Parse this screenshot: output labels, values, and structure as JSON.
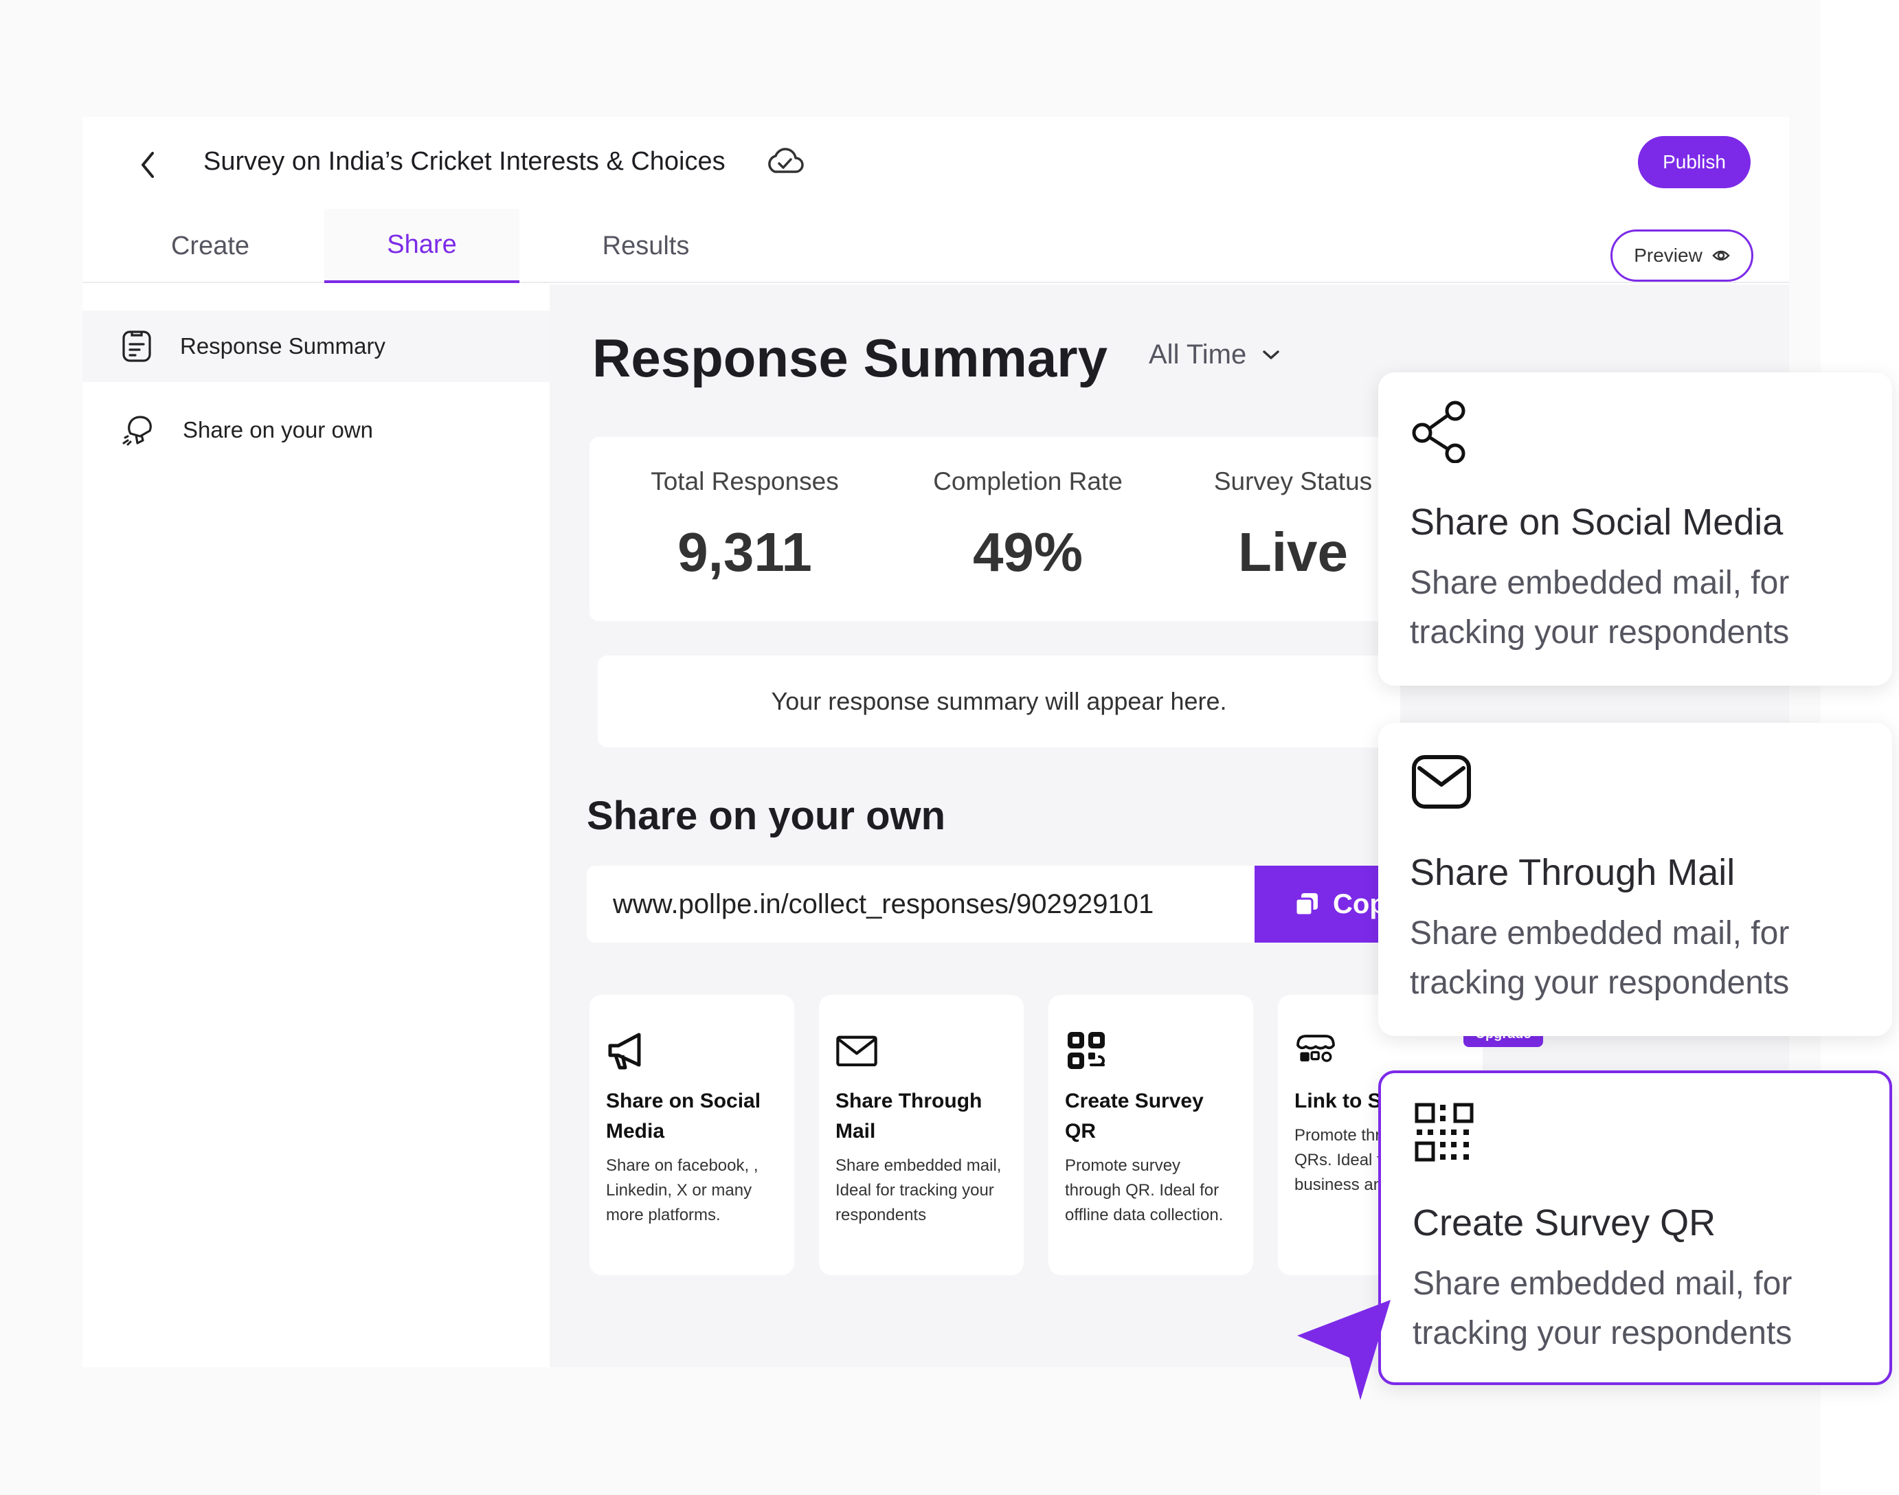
{
  "header": {
    "survey_title": "Survey on India’s Cricket Interests & Choices",
    "publish_label": "Publish",
    "preview_label": "Preview"
  },
  "tabs": [
    {
      "label": "Create",
      "active": false
    },
    {
      "label": "Share",
      "active": true
    },
    {
      "label": "Results",
      "active": false
    }
  ],
  "sidebar": {
    "items": [
      {
        "label": "Response Summary",
        "icon": "clipboard-icon",
        "active": true
      },
      {
        "label": "Share on your own",
        "icon": "megaphone-outline-icon",
        "active": false
      }
    ]
  },
  "main": {
    "heading": "Response Summary",
    "time_filter": "All Time",
    "stats": [
      {
        "label": "Total Responses",
        "value": "9,311"
      },
      {
        "label": "Completion Rate",
        "value": "49%"
      },
      {
        "label": "Survey Status",
        "value": "Live"
      }
    ],
    "summary_note": "Your response summary will appear here.",
    "share_heading": "Share on your own",
    "share_url": "www.pollpe.in/collect_responses/902929101",
    "copy_label": "Copy",
    "share_options": [
      {
        "title": "Share on Social Media",
        "desc": "Share on facebook, , Linkedin, X or many more platforms.",
        "icon": "megaphone-icon"
      },
      {
        "title": "Share Through Mail",
        "desc": "Share embedded mail, Ideal for tracking your respondents",
        "icon": "mail-icon"
      },
      {
        "title": "Create Survey QR",
        "desc": "Promote survey through QR. Ideal for offline data collection.",
        "icon": "qr-code-icon"
      },
      {
        "title": "Link to Store",
        "desc": "Promote through Store QRs. Ideal for offline business and shops.",
        "icon": "store-icon"
      }
    ],
    "upgrade_label": "Upgrade"
  },
  "floating_cards": [
    {
      "title": "Share on Social Media",
      "desc": "Share embedded mail, for tracking your respondents",
      "icon": "share-icon",
      "selected": false
    },
    {
      "title": "Share Through Mail",
      "desc": "Share embedded mail, for tracking your respondents",
      "icon": "mail-icon",
      "selected": false
    },
    {
      "title": "Create Survey QR",
      "desc": "Share embedded mail, for tracking your respondents",
      "icon": "qr-code-icon",
      "selected": true
    }
  ],
  "colors": {
    "accent": "#7c2ae8",
    "panel_bg": "#f5f5f7",
    "text": "#1d1d22"
  }
}
